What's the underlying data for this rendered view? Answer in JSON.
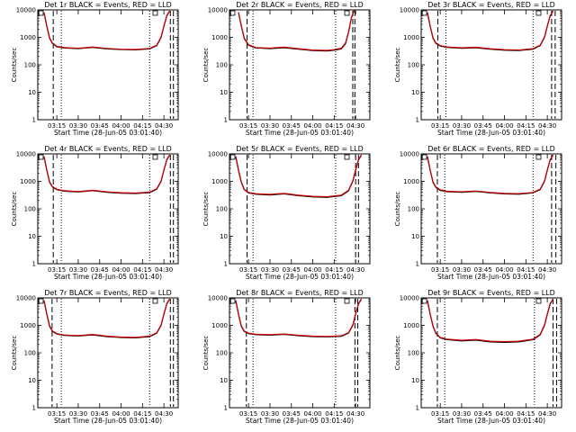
{
  "colors": {
    "events": "#000000",
    "lld": "#cc0000",
    "axis": "#000000"
  },
  "chart_data": [
    {
      "type": "line",
      "title": "Det 1r BLACK = Events, RED = LLD",
      "xlabel": "Start Time (28-Jun-05 03:01:40)",
      "ylabel": "Counts/sec",
      "yscale": "log",
      "ylim": [
        1,
        10000
      ],
      "xlim": [
        "03:01:40",
        "04:40:00"
      ],
      "x_ticks": [
        "03:15",
        "03:30",
        "03:45",
        "04:00",
        "04:15",
        "04:30"
      ],
      "y_ticks": [
        "1",
        "10",
        "100",
        "1000",
        "10000"
      ],
      "markers": [
        {
          "style": "dashed",
          "x": "03:12:30"
        },
        {
          "style": "dotted",
          "x": "03:18:10"
        },
        {
          "style": "dotted",
          "x": "04:20:00"
        },
        {
          "style": "dashed",
          "x": "04:34:30"
        },
        {
          "style": "dashed",
          "x": "04:36:40"
        }
      ],
      "series": [
        {
          "x": [
            "03:06:00",
            "03:08:00",
            "03:10:00",
            "03:12:00",
            "03:15:00",
            "03:20:00",
            "03:30:00",
            "03:40:00",
            "03:50:00",
            "04:00:00",
            "04:10:00",
            "04:20:00",
            "04:25:00",
            "04:28:00",
            "04:30:00",
            "04:32:00",
            "04:34:00"
          ],
          "events": [
            8000,
            2500,
            900,
            600,
            450,
            410,
            390,
            430,
            380,
            360,
            350,
            380,
            500,
            1000,
            2500,
            6000,
            9000
          ],
          "lld": [
            8300,
            2600,
            950,
            620,
            470,
            425,
            400,
            445,
            395,
            370,
            360,
            395,
            520,
            1050,
            2600,
            6200,
            9300
          ]
        }
      ]
    },
    {
      "type": "line",
      "title": "Det 2r BLACK = Events, RED = LLD",
      "xlabel": "Start Time (28-Jun-05 03:01:40)",
      "ylabel": "Counts/sec",
      "yscale": "log",
      "ylim": [
        1,
        10000
      ],
      "xlim": [
        "03:01:40",
        "04:40:00"
      ],
      "x_ticks": [
        "03:15",
        "03:30",
        "03:45",
        "04:00",
        "04:15",
        "04:30"
      ],
      "y_ticks": [
        "1",
        "10",
        "100",
        "1000",
        "10000"
      ],
      "markers": [
        {
          "style": "dashed",
          "x": "03:14:00"
        },
        {
          "style": "dotted",
          "x": "03:18:10"
        },
        {
          "style": "dotted",
          "x": "04:16:00"
        },
        {
          "style": "dashed",
          "x": "04:28:00"
        },
        {
          "style": "dashed",
          "x": "04:29:30"
        }
      ],
      "series": [
        {
          "x": [
            "03:08:00",
            "03:10:00",
            "03:12:00",
            "03:15:00",
            "03:20:00",
            "03:30:00",
            "03:40:00",
            "03:50:00",
            "04:00:00",
            "04:10:00",
            "04:15:00",
            "04:20:00",
            "04:23:00",
            "04:25:00",
            "04:27:00",
            "04:29:00"
          ],
          "events": [
            8000,
            2500,
            900,
            520,
            410,
            390,
            420,
            370,
            330,
            320,
            340,
            380,
            600,
            1500,
            5000,
            9500
          ],
          "lld": [
            8300,
            2600,
            950,
            540,
            425,
            405,
            440,
            385,
            345,
            335,
            355,
            400,
            630,
            1560,
            5200,
            9800
          ]
        }
      ]
    },
    {
      "type": "line",
      "title": "Det 3r BLACK = Events, RED = LLD",
      "xlabel": "Start Time (28-Jun-05 03:01:40)",
      "ylabel": "Counts/sec",
      "yscale": "log",
      "ylim": [
        1,
        10000
      ],
      "xlim": [
        "03:01:40",
        "04:40:00"
      ],
      "x_ticks": [
        "03:15",
        "03:30",
        "03:45",
        "04:00",
        "04:15",
        "04:30"
      ],
      "y_ticks": [
        "1",
        "10",
        "100",
        "1000",
        "10000"
      ],
      "markers": [
        {
          "style": "dashed",
          "x": "03:13:20"
        },
        {
          "style": "dotted",
          "x": "03:19:00"
        },
        {
          "style": "dotted",
          "x": "04:20:00"
        },
        {
          "style": "dashed",
          "x": "04:33:00"
        },
        {
          "style": "dashed",
          "x": "04:35:30"
        }
      ],
      "series": [
        {
          "x": [
            "03:06:00",
            "03:08:00",
            "03:10:00",
            "03:12:00",
            "03:15:00",
            "03:20:00",
            "03:30:00",
            "03:40:00",
            "03:50:00",
            "04:00:00",
            "04:10:00",
            "04:20:00",
            "04:25:00",
            "04:28:00",
            "04:30:00",
            "04:32:00",
            "04:34:00"
          ],
          "events": [
            8000,
            2500,
            900,
            600,
            480,
            430,
            400,
            420,
            370,
            340,
            330,
            370,
            500,
            1000,
            2500,
            6000,
            9000
          ],
          "lld": [
            8300,
            2600,
            950,
            620,
            500,
            445,
            415,
            435,
            385,
            355,
            345,
            385,
            520,
            1050,
            2600,
            6200,
            9300
          ]
        }
      ]
    },
    {
      "type": "line",
      "title": "Det 4r BLACK = Events, RED = LLD",
      "xlabel": "Start Time (28-Jun-05 03:01:40)",
      "ylabel": "Counts/sec",
      "yscale": "log",
      "ylim": [
        1,
        10000
      ],
      "xlim": [
        "03:01:40",
        "04:40:00"
      ],
      "x_ticks": [
        "03:15",
        "03:30",
        "03:45",
        "04:00",
        "04:15",
        "04:30"
      ],
      "y_ticks": [
        "1",
        "10",
        "100",
        "1000",
        "10000"
      ],
      "markers": [
        {
          "style": "dashed",
          "x": "03:12:30"
        },
        {
          "style": "dotted",
          "x": "03:18:10"
        },
        {
          "style": "dotted",
          "x": "04:20:00"
        },
        {
          "style": "dashed",
          "x": "04:34:30"
        },
        {
          "style": "dashed",
          "x": "04:36:40"
        }
      ],
      "series": [
        {
          "x": [
            "03:06:00",
            "03:08:00",
            "03:10:00",
            "03:12:00",
            "03:15:00",
            "03:20:00",
            "03:30:00",
            "03:40:00",
            "03:50:00",
            "04:00:00",
            "04:10:00",
            "04:20:00",
            "04:25:00",
            "04:28:00",
            "04:30:00",
            "04:32:00",
            "04:34:00"
          ],
          "events": [
            8000,
            2500,
            900,
            620,
            500,
            440,
            410,
            460,
            400,
            370,
            360,
            390,
            520,
            1000,
            2500,
            6000,
            9000
          ],
          "lld": [
            8300,
            2600,
            950,
            640,
            520,
            455,
            425,
            475,
            415,
            385,
            375,
            405,
            540,
            1050,
            2600,
            6200,
            9300
          ]
        }
      ]
    },
    {
      "type": "line",
      "title": "Det 5r BLACK = Events, RED = LLD",
      "xlabel": "Start Time (28-Jun-05 03:01:40)",
      "ylabel": "Counts/sec",
      "yscale": "log",
      "ylim": [
        1,
        10000
      ],
      "xlim": [
        "03:01:40",
        "04:40:00"
      ],
      "x_ticks": [
        "03:15",
        "03:30",
        "03:45",
        "04:00",
        "04:15",
        "04:30"
      ],
      "y_ticks": [
        "1",
        "10",
        "100",
        "1000",
        "10000"
      ],
      "markers": [
        {
          "style": "dashed",
          "x": "03:14:00"
        },
        {
          "style": "dotted",
          "x": "03:18:10"
        },
        {
          "style": "dotted",
          "x": "04:16:00"
        },
        {
          "style": "dashed",
          "x": "04:30:00"
        },
        {
          "style": "dashed",
          "x": "04:32:00"
        }
      ],
      "series": [
        {
          "x": [
            "03:06:00",
            "03:08:00",
            "03:10:00",
            "03:12:00",
            "03:15:00",
            "03:20:00",
            "03:30:00",
            "03:40:00",
            "03:50:00",
            "04:00:00",
            "04:10:00",
            "04:20:00",
            "04:25:00",
            "04:28:00",
            "04:30:00",
            "04:32:00",
            "04:34:00"
          ],
          "events": [
            8000,
            2500,
            900,
            500,
            380,
            340,
            320,
            350,
            300,
            270,
            260,
            300,
            450,
            1000,
            2500,
            6000,
            9000
          ],
          "lld": [
            8300,
            2600,
            950,
            520,
            395,
            355,
            335,
            365,
            315,
            285,
            275,
            315,
            470,
            1050,
            2600,
            6200,
            9300
          ]
        }
      ]
    },
    {
      "type": "line",
      "title": "Det 6r BLACK = Events, RED = LLD",
      "xlabel": "Start Time (28-Jun-05 03:01:40)",
      "ylabel": "Counts/sec",
      "yscale": "log",
      "ylim": [
        1,
        10000
      ],
      "xlim": [
        "03:01:40",
        "04:40:00"
      ],
      "x_ticks": [
        "03:15",
        "03:30",
        "03:45",
        "04:00",
        "04:15",
        "04:30"
      ],
      "y_ticks": [
        "1",
        "10",
        "100",
        "1000",
        "10000"
      ],
      "markers": [
        {
          "style": "dashed",
          "x": "03:13:00"
        },
        {
          "style": "dotted",
          "x": "03:18:10"
        },
        {
          "style": "dotted",
          "x": "04:20:00"
        },
        {
          "style": "dashed",
          "x": "04:33:00"
        },
        {
          "style": "dashed",
          "x": "04:36:00"
        }
      ],
      "series": [
        {
          "x": [
            "03:06:00",
            "03:08:00",
            "03:10:00",
            "03:12:00",
            "03:15:00",
            "03:20:00",
            "03:30:00",
            "03:40:00",
            "03:50:00",
            "04:00:00",
            "04:10:00",
            "04:20:00",
            "04:25:00",
            "04:28:00",
            "04:30:00",
            "04:32:00",
            "04:34:00"
          ],
          "events": [
            8000,
            2500,
            900,
            600,
            470,
            420,
            400,
            430,
            380,
            350,
            340,
            380,
            500,
            1000,
            2500,
            6000,
            9000
          ],
          "lld": [
            8300,
            2600,
            950,
            620,
            490,
            435,
            415,
            445,
            395,
            365,
            355,
            395,
            520,
            1050,
            2600,
            6200,
            9300
          ]
        }
      ]
    },
    {
      "type": "line",
      "title": "Det 7r BLACK = Events, RED = LLD",
      "xlabel": "Start Time (28-Jun-05 03:01:40)",
      "ylabel": "Counts/sec",
      "yscale": "log",
      "ylim": [
        1,
        10000
      ],
      "xlim": [
        "03:01:40",
        "04:40:00"
      ],
      "x_ticks": [
        "03:15",
        "03:30",
        "03:45",
        "04:00",
        "04:15",
        "04:30"
      ],
      "y_ticks": [
        "1",
        "10",
        "100",
        "1000",
        "10000"
      ],
      "markers": [
        {
          "style": "dashed",
          "x": "03:11:40"
        },
        {
          "style": "dotted",
          "x": "03:18:10"
        },
        {
          "style": "dotted",
          "x": "04:20:00"
        },
        {
          "style": "dashed",
          "x": "04:34:30"
        },
        {
          "style": "dashed",
          "x": "04:36:40"
        }
      ],
      "series": [
        {
          "x": [
            "03:06:00",
            "03:08:00",
            "03:10:00",
            "03:12:00",
            "03:15:00",
            "03:20:00",
            "03:30:00",
            "03:40:00",
            "03:50:00",
            "04:00:00",
            "04:10:00",
            "04:20:00",
            "04:25:00",
            "04:28:00",
            "04:30:00",
            "04:32:00",
            "04:34:00"
          ],
          "events": [
            8000,
            2500,
            900,
            600,
            480,
            430,
            410,
            450,
            390,
            360,
            350,
            390,
            520,
            1000,
            2500,
            6000,
            9000
          ],
          "lld": [
            8300,
            2600,
            950,
            620,
            500,
            445,
            425,
            465,
            405,
            375,
            365,
            405,
            540,
            1050,
            2600,
            6200,
            9300
          ]
        }
      ]
    },
    {
      "type": "line",
      "title": "Det 8r BLACK = Events, RED = LLD",
      "xlabel": "Start Time (28-Jun-05 03:01:40)",
      "ylabel": "Counts/sec",
      "yscale": "log",
      "ylim": [
        1,
        10000
      ],
      "xlim": [
        "03:01:40",
        "04:40:00"
      ],
      "x_ticks": [
        "03:15",
        "03:30",
        "03:45",
        "04:00",
        "04:15",
        "04:30"
      ],
      "y_ticks": [
        "1",
        "10",
        "100",
        "1000",
        "10000"
      ],
      "markers": [
        {
          "style": "dashed",
          "x": "03:13:30"
        },
        {
          "style": "dotted",
          "x": "03:18:10"
        },
        {
          "style": "dotted",
          "x": "04:16:00"
        },
        {
          "style": "dashed",
          "x": "04:29:30"
        },
        {
          "style": "dashed",
          "x": "04:31:30"
        }
      ],
      "series": [
        {
          "x": [
            "03:06:00",
            "03:08:00",
            "03:10:00",
            "03:12:00",
            "03:15:00",
            "03:20:00",
            "03:30:00",
            "03:40:00",
            "03:50:00",
            "04:00:00",
            "04:10:00",
            "04:20:00",
            "04:25:00",
            "04:28:00",
            "04:30:00",
            "04:32:00",
            "04:34:00"
          ],
          "events": [
            8000,
            2500,
            900,
            600,
            500,
            460,
            440,
            470,
            420,
            390,
            380,
            400,
            520,
            1000,
            2500,
            6000,
            9000
          ],
          "lld": [
            8300,
            2600,
            950,
            620,
            520,
            475,
            455,
            485,
            435,
            405,
            395,
            415,
            540,
            1050,
            2600,
            6200,
            9300
          ]
        }
      ]
    },
    {
      "type": "line",
      "title": "Det 9r BLACK = Events, RED = LLD",
      "xlabel": "Start Time (28-Jun-05 03:01:40)",
      "ylabel": "Counts/sec",
      "yscale": "log",
      "ylim": [
        1,
        10000
      ],
      "xlim": [
        "03:01:40",
        "04:40:00"
      ],
      "x_ticks": [
        "03:15",
        "03:30",
        "03:45",
        "04:00",
        "04:15",
        "04:30"
      ],
      "y_ticks": [
        "1",
        "10",
        "100",
        "1000",
        "10000"
      ],
      "markers": [
        {
          "style": "dashed",
          "x": "03:13:00"
        },
        {
          "style": "dotted",
          "x": "03:18:10"
        },
        {
          "style": "dotted",
          "x": "04:21:00"
        },
        {
          "style": "dashed",
          "x": "04:34:00"
        },
        {
          "style": "dashed",
          "x": "04:36:30"
        }
      ],
      "series": [
        {
          "x": [
            "03:06:00",
            "03:08:00",
            "03:10:00",
            "03:12:00",
            "03:15:00",
            "03:20:00",
            "03:30:00",
            "03:40:00",
            "03:50:00",
            "04:00:00",
            "04:10:00",
            "04:20:00",
            "04:25:00",
            "04:28:00",
            "04:30:00",
            "04:32:00",
            "04:34:00"
          ],
          "events": [
            8000,
            2500,
            900,
            500,
            350,
            300,
            270,
            290,
            250,
            240,
            250,
            300,
            450,
            1000,
            2500,
            6000,
            9000
          ],
          "lld": [
            8300,
            2600,
            950,
            520,
            365,
            315,
            285,
            305,
            265,
            255,
            265,
            315,
            470,
            1050,
            2600,
            6200,
            9300
          ]
        }
      ]
    }
  ]
}
